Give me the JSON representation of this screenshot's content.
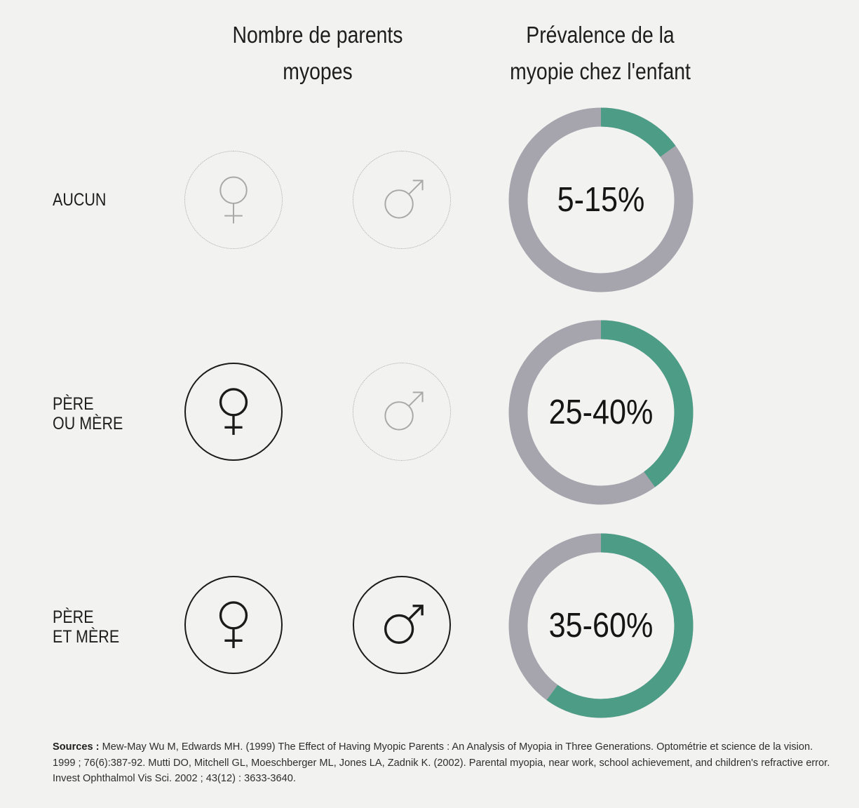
{
  "header": {
    "parents_title": "Nombre de parents\nmyopes",
    "prevalence_title": "Prévalence de la\nmyopie chez l'enfant"
  },
  "rows": [
    {
      "label": "AUCUN",
      "mother_myopic": false,
      "father_myopic": false,
      "prevalence": "5-15%"
    },
    {
      "label": "PÈRE\nOU MÈRE",
      "mother_myopic": true,
      "father_myopic": false,
      "prevalence": "25-40%"
    },
    {
      "label": "PÈRE\nET MÈRE",
      "mother_myopic": true,
      "father_myopic": true,
      "prevalence": "35-60%"
    }
  ],
  "chart_data": {
    "type": "pie",
    "title": "Prévalence de la myopie chez l'enfant",
    "categories": [
      "AUCUN",
      "PÈRE OU MÈRE",
      "PÈRE ET MÈRE"
    ],
    "ranges": [
      [
        5,
        15
      ],
      [
        25,
        40
      ],
      [
        35,
        60
      ]
    ],
    "values": [
      15,
      40,
      60
    ],
    "unit": "%"
  },
  "icons": {
    "mother": "female-symbol-icon",
    "father": "male-symbol-icon"
  },
  "colors": {
    "highlight": "#4c9c86",
    "ring_base": "#a6a5ad",
    "active_outline": "#1b1b1b",
    "inactive_outline": "#a8a8a8",
    "background": "#f2f2f1"
  },
  "sources": {
    "label": "Sources :",
    "text": " Mew-May Wu M, Edwards MH. (1999) The Effect of Having Myopic Parents : An Analysis of Myopia in Three Generations. Optométrie et science de la vision. 1999 ; 76(6):387-92. Mutti DO, Mitchell GL, Moeschberger ML, Jones LA, Zadnik K. (2002). Parental myopia, near work, school achievement, and children's refractive error. Invest Ophthalmol Vis Sci. 2002 ; 43(12) : 3633-3640."
  }
}
